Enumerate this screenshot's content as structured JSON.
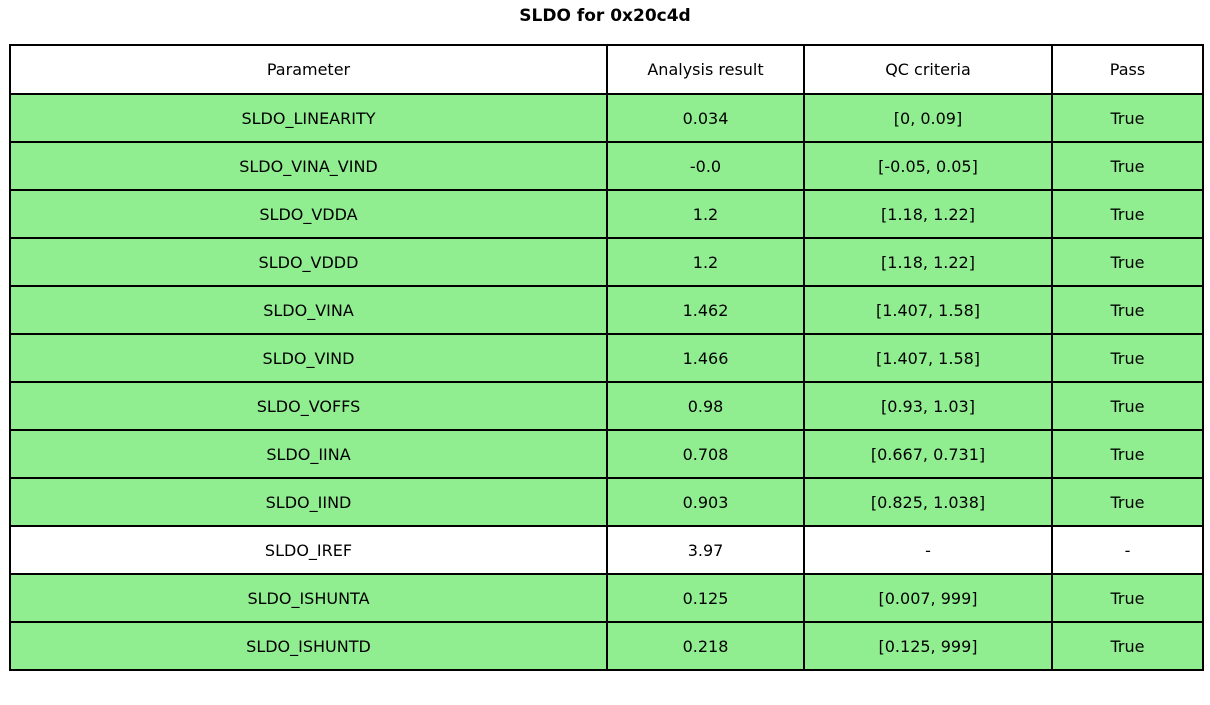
{
  "title": "SLDO for 0x20c4d",
  "colors": {
    "row_highlight": "#90ee90",
    "row_neutral": "#ffffff",
    "border": "#000000",
    "text": "#000000",
    "background": "#ffffff"
  },
  "chart_data": {
    "type": "table",
    "title": "SLDO for 0x20c4d",
    "columns": [
      "Parameter",
      "Analysis result",
      "QC criteria",
      "Pass"
    ],
    "rows": [
      [
        "SLDO_LINEARITY",
        "0.034",
        "[0, 0.09]",
        "True"
      ],
      [
        "SLDO_VINA_VIND",
        "-0.0",
        "[-0.05, 0.05]",
        "True"
      ],
      [
        "SLDO_VDDA",
        "1.2",
        "[1.18, 1.22]",
        "True"
      ],
      [
        "SLDO_VDDD",
        "1.2",
        "[1.18, 1.22]",
        "True"
      ],
      [
        "SLDO_VINA",
        "1.462",
        "[1.407, 1.58]",
        "True"
      ],
      [
        "SLDO_VIND",
        "1.466",
        "[1.407, 1.58]",
        "True"
      ],
      [
        "SLDO_VOFFS",
        "0.98",
        "[0.93, 1.03]",
        "True"
      ],
      [
        "SLDO_IINA",
        "0.708",
        "[0.667, 0.731]",
        "True"
      ],
      [
        "SLDO_IIND",
        "0.903",
        "[0.825, 1.038]",
        "True"
      ],
      [
        "SLDO_IREF",
        "3.97",
        "-",
        "-"
      ],
      [
        "SLDO_ISHUNTA",
        "0.125",
        "[0.007, 999]",
        "True"
      ],
      [
        "SLDO_ISHUNTD",
        "0.218",
        "[0.125, 999]",
        "True"
      ]
    ],
    "row_highlighted": [
      true,
      true,
      true,
      true,
      true,
      true,
      true,
      true,
      true,
      false,
      true,
      true
    ],
    "highlight_color": "#90ee90",
    "grid": true,
    "header_background": "#ffffff",
    "layout": "title centered above full-width bordered table"
  }
}
